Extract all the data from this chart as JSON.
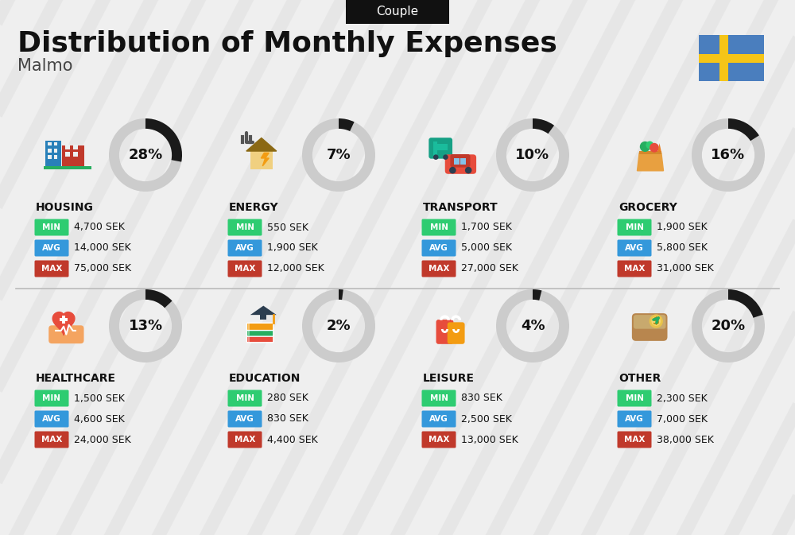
{
  "title": "Distribution of Monthly Expenses",
  "subtitle": "Couple",
  "city": "Malmo",
  "background_color": "#efefef",
  "categories": [
    {
      "name": "HOUSING",
      "pct": 28,
      "min_val": "4,700 SEK",
      "avg_val": "14,000 SEK",
      "max_val": "75,000 SEK",
      "icon": "housing",
      "row": 0,
      "col": 0
    },
    {
      "name": "ENERGY",
      "pct": 7,
      "min_val": "550 SEK",
      "avg_val": "1,900 SEK",
      "max_val": "12,000 SEK",
      "icon": "energy",
      "row": 0,
      "col": 1
    },
    {
      "name": "TRANSPORT",
      "pct": 10,
      "min_val": "1,700 SEK",
      "avg_val": "5,000 SEK",
      "max_val": "27,000 SEK",
      "icon": "transport",
      "row": 0,
      "col": 2
    },
    {
      "name": "GROCERY",
      "pct": 16,
      "min_val": "1,900 SEK",
      "avg_val": "5,800 SEK",
      "max_val": "31,000 SEK",
      "icon": "grocery",
      "row": 0,
      "col": 3
    },
    {
      "name": "HEALTHCARE",
      "pct": 13,
      "min_val": "1,500 SEK",
      "avg_val": "4,600 SEK",
      "max_val": "24,000 SEK",
      "icon": "healthcare",
      "row": 1,
      "col": 0
    },
    {
      "name": "EDUCATION",
      "pct": 2,
      "min_val": "280 SEK",
      "avg_val": "830 SEK",
      "max_val": "4,400 SEK",
      "icon": "education",
      "row": 1,
      "col": 1
    },
    {
      "name": "LEISURE",
      "pct": 4,
      "min_val": "830 SEK",
      "avg_val": "2,500 SEK",
      "max_val": "13,000 SEK",
      "icon": "leisure",
      "row": 1,
      "col": 2
    },
    {
      "name": "OTHER",
      "pct": 20,
      "min_val": "2,300 SEK",
      "avg_val": "7,000 SEK",
      "max_val": "38,000 SEK",
      "icon": "other",
      "row": 1,
      "col": 3
    }
  ],
  "color_min": "#2ecc71",
  "color_avg": "#3498db",
  "color_max": "#c0392b",
  "flag_blue": "#4a7ebe",
  "flag_yellow": "#f5c518"
}
